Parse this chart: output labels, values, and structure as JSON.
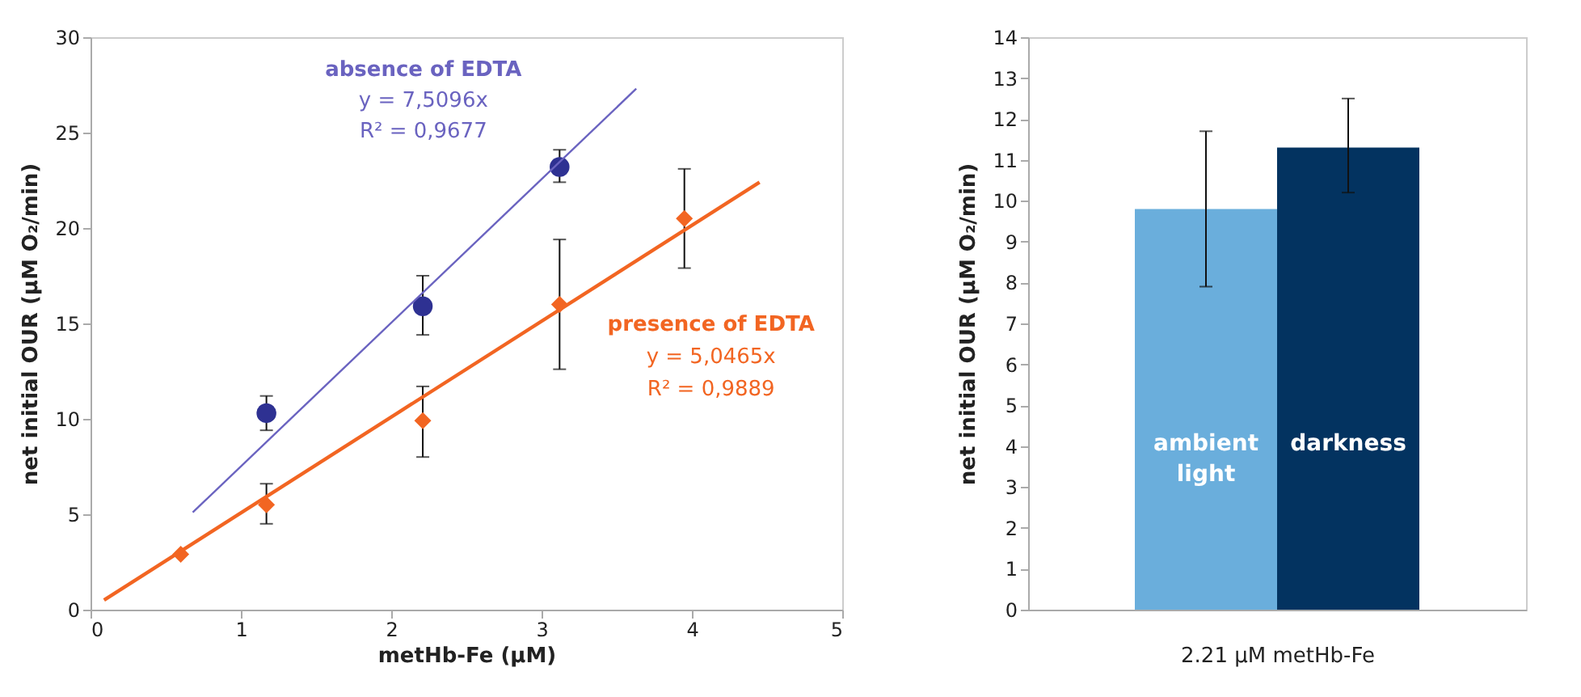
{
  "chart_data": [
    {
      "type": "scatter",
      "xlabel": "metHb-Fe (µM)",
      "ylabel": "net initial OUR (µM O₂/min)",
      "xlim": [
        0,
        5
      ],
      "xticks": [
        0,
        1,
        2,
        3,
        4,
        5
      ],
      "ylim": [
        0,
        30
      ],
      "yticks": [
        0,
        5,
        10,
        15,
        20,
        25,
        30
      ],
      "grid": false,
      "series": [
        {
          "type": "scatter",
          "color": "#2e3192",
          "marker": "circle",
          "x": [
            1.17,
            2.21,
            3.12
          ],
          "values": [
            10.3,
            15.9,
            23.2
          ],
          "errors": [
            [
              9.4,
              11.2
            ],
            [
              14.4,
              17.5
            ],
            [
              22.4,
              24.1
            ]
          ]
        },
        {
          "type": "scatter",
          "color": "#f26522",
          "marker": "diamond",
          "x": [
            0.6,
            1.17,
            2.21,
            3.12,
            3.95
          ],
          "values": [
            2.9,
            5.5,
            9.9,
            16.0,
            20.5
          ],
          "errors": [
            null,
            [
              4.5,
              6.6
            ],
            [
              8.0,
              11.7
            ],
            [
              12.6,
              19.4
            ],
            [
              17.9,
              23.1
            ]
          ]
        },
        {
          "type": "line",
          "color": "#6a63c0",
          "marker": "none",
          "line_style": "solid",
          "x": [
            0.68,
            3.63
          ],
          "values": [
            5.1,
            27.3
          ]
        },
        {
          "type": "line",
          "color": "#f26522",
          "marker": "none",
          "line_style": "solid",
          "x": [
            0.09,
            4.45
          ],
          "values": [
            0.5,
            22.4
          ]
        }
      ],
      "annotations": [
        "absence of EDTA",
        "y = 7,5096x",
        "R² = 0,9677",
        "presence of EDTA",
        "y = 5,0465x",
        "R² = 0,9889"
      ]
    },
    {
      "type": "bar",
      "xlabel": "2.21 µM metHb-Fe",
      "ylabel": "net initial OUR (µM O₂/min)",
      "ylim": [
        0,
        14
      ],
      "yticks": [
        0,
        1,
        2,
        3,
        4,
        5,
        6,
        7,
        8,
        9,
        10,
        11,
        12,
        13,
        14
      ],
      "grid": false,
      "categories": [
        "ambient light",
        "darkness"
      ],
      "values": [
        9.8,
        11.3
      ],
      "colors": [
        "#6aaedc",
        "#033360"
      ],
      "errors": [
        [
          7.9,
          11.7
        ],
        [
          10.2,
          12.5
        ]
      ]
    }
  ]
}
